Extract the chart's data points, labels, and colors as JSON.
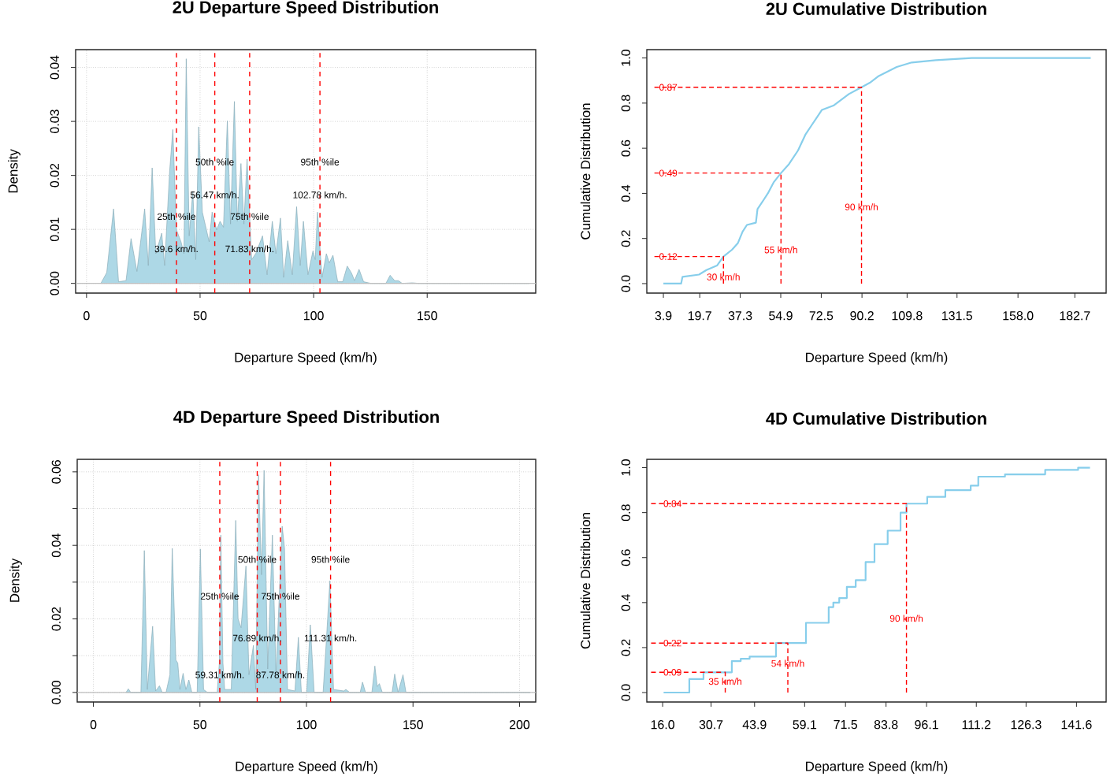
{
  "chart_data": [
    {
      "type": "area",
      "title": "2U Departure Speed Distribution",
      "xlabel": "Departure Speed (km/h)",
      "ylabel": "Density",
      "color": "#add8e6",
      "x": [
        6.3,
        8.9,
        11.9,
        14.1,
        17.4,
        19.6,
        22.2,
        25.6,
        27.2,
        28.9,
        30.5,
        33.1,
        34.4,
        36.6,
        38.0,
        39.6,
        41.6,
        42.9,
        43.9,
        45.2,
        46.8,
        48.1,
        49.4,
        51.0,
        54.0,
        55.3,
        57.3,
        58.8,
        60.3,
        62.0,
        63.4,
        65.1,
        66.4,
        68.0,
        69.3,
        70.7,
        72.7,
        74.5,
        77.5,
        79.5,
        81.8,
        83.4,
        85.4,
        86.8,
        88.6,
        90.6,
        92.5,
        94.1,
        95.5,
        97.5,
        99.7,
        100.7,
        101.7,
        103.7,
        105.6,
        106.9,
        108.5,
        110.6,
        112.8,
        114.8,
        116.7,
        118.0,
        120.0,
        122.0,
        125.2,
        131.8,
        133.7,
        135.7,
        137.3,
        139.0,
        143.5,
        146.1,
        195.0
      ],
      "values": [
        0,
        0.002,
        0.0138,
        0.0003,
        0.0005,
        0.0083,
        0.0022,
        0.0138,
        0.0033,
        0.0214,
        0.0055,
        0.0093,
        0.0033,
        0.0208,
        0.0285,
        0.0099,
        0.0077,
        0.0055,
        0.0416,
        0.0088,
        0.017,
        0.0044,
        0.029,
        0.0132,
        0.0077,
        0.0132,
        0.0099,
        0.0115,
        0.0104,
        0.0301,
        0.011,
        0.0337,
        0.0115,
        0.0222,
        0.011,
        0.023,
        0.0044,
        0.0055,
        0.0088,
        0.0016,
        0.0115,
        0.0055,
        0.0121,
        0.0011,
        0.0079,
        0.0016,
        0.0142,
        0.0033,
        0.0115,
        0.0016,
        0.006,
        0.0044,
        0.0132,
        0.0011,
        0.0055,
        0.0038,
        0.0052,
        0.0003,
        0.0003,
        0.0032,
        0.0019,
        0.0005,
        0.0026,
        0.0003,
        0,
        0,
        0.0015,
        0.0005,
        0.0005,
        0,
        0.0001,
        0,
        0
      ],
      "xlim": [
        -4.8,
        197.8
      ],
      "ylim": [
        -0.0018,
        0.0433
      ],
      "xticks": [
        0,
        50,
        100,
        150
      ],
      "yticks": [
        {
          "value": 0,
          "label": "0.00"
        },
        {
          "value": 0.01,
          "label": "0.01"
        },
        {
          "value": 0.02,
          "label": "0.02"
        },
        {
          "value": 0.03,
          "label": "0.03"
        },
        {
          "value": 0.04,
          "label": "0.04"
        }
      ],
      "grid": true,
      "ref_lines": [
        {
          "axis": "y",
          "value": 0,
          "color": "#bebebe"
        },
        {
          "axis": "x",
          "value": 39.6,
          "color": "#ff0000",
          "line_style": "dashed"
        },
        {
          "axis": "x",
          "value": 56.47,
          "color": "#ff0000",
          "line_style": "dashed"
        },
        {
          "axis": "x",
          "value": 71.83,
          "color": "#ff0000",
          "line_style": "dashed"
        },
        {
          "axis": "x",
          "value": 102.78,
          "color": "#ff0000",
          "line_style": "dashed"
        }
      ],
      "annotations": [
        {
          "text": "25th %ile",
          "x": 39.6,
          "y": 0.0124
        },
        {
          "text": "39.6 km/h.",
          "x": 39.6,
          "y": 0.0064
        },
        {
          "text": "50th %ile",
          "x": 56.47,
          "y": 0.0225
        },
        {
          "text": "56.47 km/h.",
          "x": 56.47,
          "y": 0.0164
        },
        {
          "text": "75th %ile",
          "x": 71.83,
          "y": 0.0124
        },
        {
          "text": "71.83 km/h.",
          "x": 71.83,
          "y": 0.0064
        },
        {
          "text": "95th %ile",
          "x": 102.78,
          "y": 0.0225
        },
        {
          "text": "102.78 km/h.",
          "x": 102.78,
          "y": 0.0164
        }
      ]
    },
    {
      "type": "line",
      "title": "2U Cumulative Distribution",
      "xlabel": "Departure Speed (km/h)",
      "ylabel": "Cumulative Distribution",
      "series": [
        {
          "color": "#87ceeb",
          "x": [
            3.9,
            11.6,
            12.2,
            19.4,
            22.6,
            27.2,
            30,
            33.7,
            36.3,
            38.3,
            40.2,
            44.1,
            44.8,
            47.4,
            49.3,
            51.9,
            55,
            58.5,
            62.4,
            65.6,
            68.2,
            71.5,
            72.8,
            78.0,
            84.5,
            90,
            93.6,
            97.5,
            101.4,
            105.3,
            111.8,
            122.3,
            137.9,
            189.6
          ],
          "values": [
            0,
            0,
            0.03,
            0.04,
            0.06,
            0.08,
            0.12,
            0.15,
            0.18,
            0.23,
            0.26,
            0.27,
            0.33,
            0.37,
            0.4,
            0.45,
            0.49,
            0.53,
            0.59,
            0.66,
            0.7,
            0.75,
            0.77,
            0.79,
            0.84,
            0.87,
            0.89,
            0.92,
            0.94,
            0.96,
            0.98,
            0.99,
            1,
            1
          ]
        },
        {
          "color": "#ff0000",
          "line_style": "dashed",
          "x": [
            0,
            30,
            30
          ],
          "values": [
            0.12,
            0.12,
            0
          ]
        },
        {
          "color": "#ff0000",
          "line_style": "dashed",
          "x": [
            0,
            55,
            55
          ],
          "values": [
            0.49,
            0.49,
            0
          ]
        },
        {
          "color": "#ff0000",
          "line_style": "dashed",
          "x": [
            0,
            90,
            90
          ],
          "values": [
            0.87,
            0.87,
            0
          ]
        }
      ],
      "xlim": [
        -3.3,
        196.3
      ],
      "ylim": [
        -0.042,
        1.037
      ],
      "xticks": [
        3.9,
        19.7,
        37.3,
        54.9,
        72.5,
        90.2,
        109.8,
        131.5,
        {
          "value": 158,
          "label": "158.0"
        },
        182.7
      ],
      "yticks": [
        {
          "value": 0,
          "label": "0.0"
        },
        {
          "value": 0.2,
          "label": "0.2"
        },
        {
          "value": 0.4,
          "label": "0.4"
        },
        {
          "value": 0.6,
          "label": "0.6"
        },
        {
          "value": 0.8,
          "label": "0.8"
        },
        {
          "value": 1,
          "label": "1.0"
        }
      ],
      "annotations": [
        {
          "text": "0.12",
          "x": 6,
          "y": 0.12
        },
        {
          "text": "0.49",
          "x": 6,
          "y": 0.49
        },
        {
          "text": "0.87",
          "x": 6,
          "y": 0.87
        },
        {
          "text": "30 km/h",
          "x": 30,
          "y": 0.03
        },
        {
          "text": "55 km/h",
          "x": 55,
          "y": 0.15
        },
        {
          "text": "90 km/h",
          "x": 90,
          "y": 0.34
        }
      ]
    },
    {
      "type": "area",
      "title": "4D Departure Speed Distribution",
      "xlabel": "Departure Speed (km/h)",
      "ylabel": "Density",
      "color": "#add8e6",
      "x": [
        15.3,
        16.4,
        17.5,
        22.3,
        23.9,
        25.3,
        27.8,
        29.2,
        31.0,
        32.3,
        34.1,
        35.9,
        37.0,
        38.7,
        39.6,
        40.6,
        42.1,
        43.4,
        44.8,
        46.2,
        48.7,
        50.2,
        51.7,
        53.5,
        58.1,
        59.1,
        59.8,
        60.8,
        61.6,
        64.7,
        66.8,
        67.9,
        69.3,
        71.6,
        73.0,
        75.1,
        76.2,
        77.5,
        78.9,
        80.1,
        81.8,
        84.0,
        85.7,
        88.6,
        89.7,
        91.1,
        94.6,
        96.2,
        97.6,
        100.1,
        101.8,
        103.6,
        107.8,
        109.2,
        111.0,
        112.7,
        117.5,
        118.5,
        120.3,
        125.2,
        126.3,
        127.7,
        130.7,
        132.1,
        133.2,
        134.2,
        135.6,
        140.2,
        141.4,
        143.0,
        145.3,
        146.7,
        205.0
      ],
      "values": [
        0,
        0.001,
        0,
        0,
        0.0386,
        0.0008,
        0.018,
        0.0004,
        0.0018,
        0,
        0,
        0.0048,
        0.0392,
        0.0088,
        0.008,
        0.0008,
        0.0052,
        0.0008,
        0.0034,
        0,
        0,
        0.039,
        0.0008,
        0,
        0,
        0.008,
        0.0428,
        0.008,
        0.0008,
        0.0008,
        0.0468,
        0.02,
        0.0176,
        0.0344,
        0.0048,
        0.0128,
        0.0008,
        0.0592,
        0.032,
        0.0604,
        0.0064,
        0.0428,
        0.0048,
        0.0452,
        0.0392,
        0.0008,
        0.0004,
        0.015,
        0,
        0,
        0.0184,
        0,
        0,
        0.0128,
        0.0304,
        0.0008,
        0.0004,
        0.0008,
        0,
        0,
        0.0028,
        0,
        0,
        0.0072,
        0.0016,
        0.0024,
        0,
        0,
        0.005,
        0,
        0.0048,
        0,
        0
      ],
      "xlim": [
        -7.6,
        207.6
      ],
      "ylim": [
        -0.0026,
        0.0634
      ],
      "xticks": [
        0,
        50,
        100,
        150,
        200
      ],
      "yticks": [
        {
          "value": 0,
          "label": "0.00"
        },
        {
          "value": 0.01,
          "label": null
        },
        {
          "value": 0.02,
          "label": "0.02"
        },
        {
          "value": 0.03,
          "label": null
        },
        {
          "value": 0.04,
          "label": "0.04"
        },
        {
          "value": 0.05,
          "label": null
        },
        {
          "value": 0.06,
          "label": "0.06"
        }
      ],
      "grid": true,
      "ref_lines": [
        {
          "axis": "y",
          "value": 0,
          "color": "#bebebe"
        },
        {
          "axis": "x",
          "value": 59.31,
          "color": "#ff0000",
          "line_style": "dashed"
        },
        {
          "axis": "x",
          "value": 76.89,
          "color": "#ff0000",
          "line_style": "dashed"
        },
        {
          "axis": "x",
          "value": 87.78,
          "color": "#ff0000",
          "line_style": "dashed"
        },
        {
          "axis": "x",
          "value": 111.31,
          "color": "#ff0000",
          "line_style": "dashed"
        }
      ],
      "annotations": [
        {
          "text": "25th %ile",
          "x": 59.31,
          "y": 0.0262
        },
        {
          "text": "59.31 km/h.",
          "x": 59.31,
          "y": 0.0048
        },
        {
          "text": "50th %ile",
          "x": 76.89,
          "y": 0.0362
        },
        {
          "text": "76.89 km/h.",
          "x": 76.89,
          "y": 0.0148
        },
        {
          "text": "75th %ile",
          "x": 87.78,
          "y": 0.0262
        },
        {
          "text": "87.78 km/h.",
          "x": 87.78,
          "y": 0.0048
        },
        {
          "text": "95th %ile",
          "x": 111.31,
          "y": 0.0362
        },
        {
          "text": "111.31 km/h.",
          "x": 111.31,
          "y": 0.0148
        }
      ]
    },
    {
      "type": "step",
      "title": "4D Cumulative Distribution",
      "xlabel": "Departure Speed (km/h)",
      "ylabel": "Cumulative Distribution",
      "series": [
        {
          "color": "#87ceeb",
          "x": [
            16.3,
            24.1,
            28.4,
            37.0,
            39.7,
            42.4,
            45.1,
            50.4,
            59.5,
            66.4,
            67.8,
            69.6,
            71.9,
            74.6,
            77.6,
            80.3,
            84.3,
            88.2,
            90,
            96.3,
            101.8,
            109.5,
            111.8,
            119.9,
            132.1,
            142.1,
            145.7
          ],
          "values": [
            0,
            0.06,
            0.09,
            0.14,
            0.15,
            0.16,
            0.16,
            0.22,
            0.31,
            0.38,
            0.4,
            0.42,
            0.47,
            0.5,
            0.58,
            0.66,
            0.72,
            0.8,
            0.84,
            0.87,
            0.9,
            0.92,
            0.96,
            0.97,
            0.99,
            1,
            1
          ]
        },
        {
          "type": "line",
          "color": "#ff0000",
          "line_style": "dashed",
          "x": [
            12.5,
            35,
            35
          ],
          "values": [
            0.09,
            0.09,
            0
          ]
        },
        {
          "type": "line",
          "color": "#ff0000",
          "line_style": "dashed",
          "x": [
            12.5,
            54,
            54
          ],
          "values": [
            0.22,
            0.22,
            0
          ]
        },
        {
          "type": "line",
          "color": "#ff0000",
          "line_style": "dashed",
          "x": [
            12.5,
            90,
            90
          ],
          "values": [
            0.84,
            0.84,
            0
          ]
        }
      ],
      "xlim": [
        11.2,
        150.6
      ],
      "ylim": [
        -0.042,
        1.037
      ],
      "xticks": [
        {
          "value": 16,
          "label": "16.0"
        },
        30.7,
        43.9,
        59.1,
        71.5,
        83.8,
        96.1,
        111.2,
        126.3,
        141.6
      ],
      "yticks": [
        {
          "value": 0,
          "label": "0.0"
        },
        {
          "value": 0.2,
          "label": "0.2"
        },
        {
          "value": 0.4,
          "label": "0.4"
        },
        {
          "value": 0.6,
          "label": "0.6"
        },
        {
          "value": 0.8,
          "label": "0.8"
        },
        {
          "value": 1,
          "label": "1.0"
        }
      ],
      "annotations": [
        {
          "text": "0.09",
          "x": 19,
          "y": 0.09
        },
        {
          "text": "0.22",
          "x": 19,
          "y": 0.22
        },
        {
          "text": "0.84",
          "x": 19,
          "y": 0.84
        },
        {
          "text": "35 km/h",
          "x": 35,
          "y": 0.05
        },
        {
          "text": "54 km/h",
          "x": 54,
          "y": 0.13
        },
        {
          "text": "90 km/h",
          "x": 90,
          "y": 0.33
        }
      ]
    }
  ]
}
